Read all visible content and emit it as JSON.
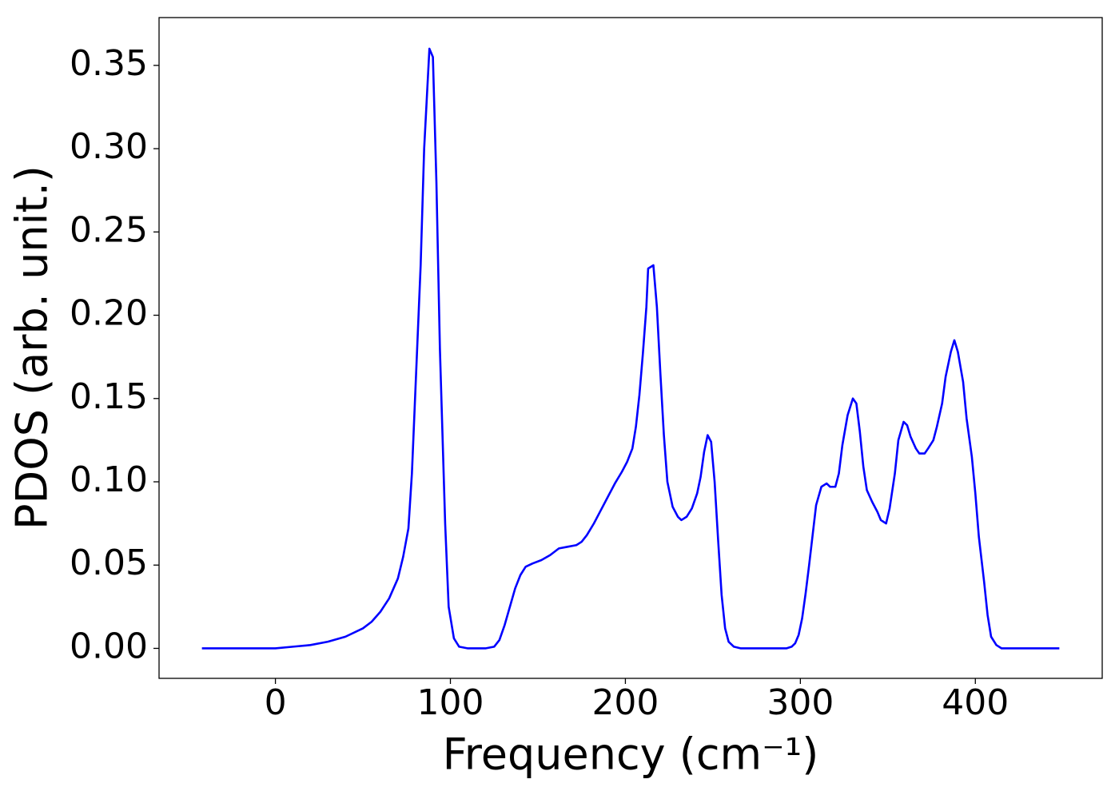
{
  "chart_data": {
    "type": "line",
    "xlabel": "Frequency (cm⁻¹)",
    "ylabel": "PDOS (arb. unit.)",
    "x": [
      -42,
      0,
      10,
      20,
      30,
      40,
      50,
      55,
      60,
      65,
      70,
      73,
      76,
      78,
      80,
      83,
      85,
      88,
      90,
      92,
      94,
      97,
      99,
      102,
      105,
      110,
      120,
      125,
      128,
      131,
      134,
      137,
      140,
      143,
      147,
      152,
      157,
      162,
      167,
      172,
      175,
      178,
      182,
      186,
      190,
      194,
      198,
      201,
      204,
      206,
      208,
      210,
      212,
      213,
      216,
      218,
      220,
      222,
      224,
      227,
      230,
      232,
      235,
      238,
      241,
      243,
      245,
      247,
      249,
      251,
      253,
      255,
      257,
      259,
      262,
      266,
      292,
      295,
      297,
      299,
      301,
      303,
      305,
      307,
      309,
      312,
      315,
      317,
      320,
      322,
      324,
      327,
      330,
      332,
      334,
      336,
      338,
      341,
      344,
      346,
      349,
      351,
      354,
      356,
      359,
      361,
      363,
      366,
      368,
      371,
      373,
      376,
      378,
      381,
      383,
      386,
      388,
      390,
      393,
      395,
      398,
      400,
      402,
      405,
      407,
      409,
      412,
      415,
      448
    ],
    "series": [
      {
        "name": "PDOS",
        "color": "#0000ff",
        "values": [
          0,
          0,
          0.001,
          0.002,
          0.004,
          0.007,
          0.012,
          0.016,
          0.022,
          0.03,
          0.042,
          0.055,
          0.072,
          0.105,
          0.155,
          0.23,
          0.3,
          0.36,
          0.355,
          0.28,
          0.18,
          0.075,
          0.025,
          0.006,
          0.001,
          0,
          0,
          0.001,
          0.005,
          0.014,
          0.025,
          0.036,
          0.044,
          0.049,
          0.051,
          0.053,
          0.056,
          0.06,
          0.061,
          0.062,
          0.064,
          0.068,
          0.075,
          0.083,
          0.091,
          0.099,
          0.106,
          0.112,
          0.12,
          0.133,
          0.152,
          0.177,
          0.205,
          0.228,
          0.23,
          0.205,
          0.165,
          0.128,
          0.1,
          0.085,
          0.079,
          0.077,
          0.079,
          0.084,
          0.093,
          0.103,
          0.118,
          0.128,
          0.124,
          0.1,
          0.065,
          0.032,
          0.012,
          0.004,
          0.001,
          0,
          0,
          0.001,
          0.003,
          0.008,
          0.018,
          0.033,
          0.05,
          0.068,
          0.086,
          0.097,
          0.099,
          0.097,
          0.097,
          0.105,
          0.122,
          0.14,
          0.15,
          0.147,
          0.13,
          0.109,
          0.095,
          0.088,
          0.082,
          0.077,
          0.075,
          0.084,
          0.105,
          0.125,
          0.136,
          0.134,
          0.127,
          0.12,
          0.117,
          0.117,
          0.12,
          0.125,
          0.133,
          0.147,
          0.163,
          0.178,
          0.185,
          0.178,
          0.16,
          0.138,
          0.115,
          0.093,
          0.067,
          0.04,
          0.02,
          0.007,
          0.002,
          0,
          0
        ]
      }
    ],
    "xlim": [
      -66.5,
      472.5
    ],
    "xticks": [
      0,
      100,
      200,
      300,
      400
    ],
    "ylim": [
      -0.018,
      0.3787
    ],
    "yticks": [
      {
        "value": 0,
        "label": "0.00"
      },
      {
        "value": 0.05,
        "label": "0.05"
      },
      {
        "value": 0.1,
        "label": "0.10"
      },
      {
        "value": 0.15,
        "label": "0.15"
      },
      {
        "value": 0.2,
        "label": "0.20"
      },
      {
        "value": 0.25,
        "label": "0.25"
      },
      {
        "value": 0.3,
        "label": "0.30"
      },
      {
        "value": 0.35,
        "label": "0.35"
      }
    ],
    "grid": false
  }
}
